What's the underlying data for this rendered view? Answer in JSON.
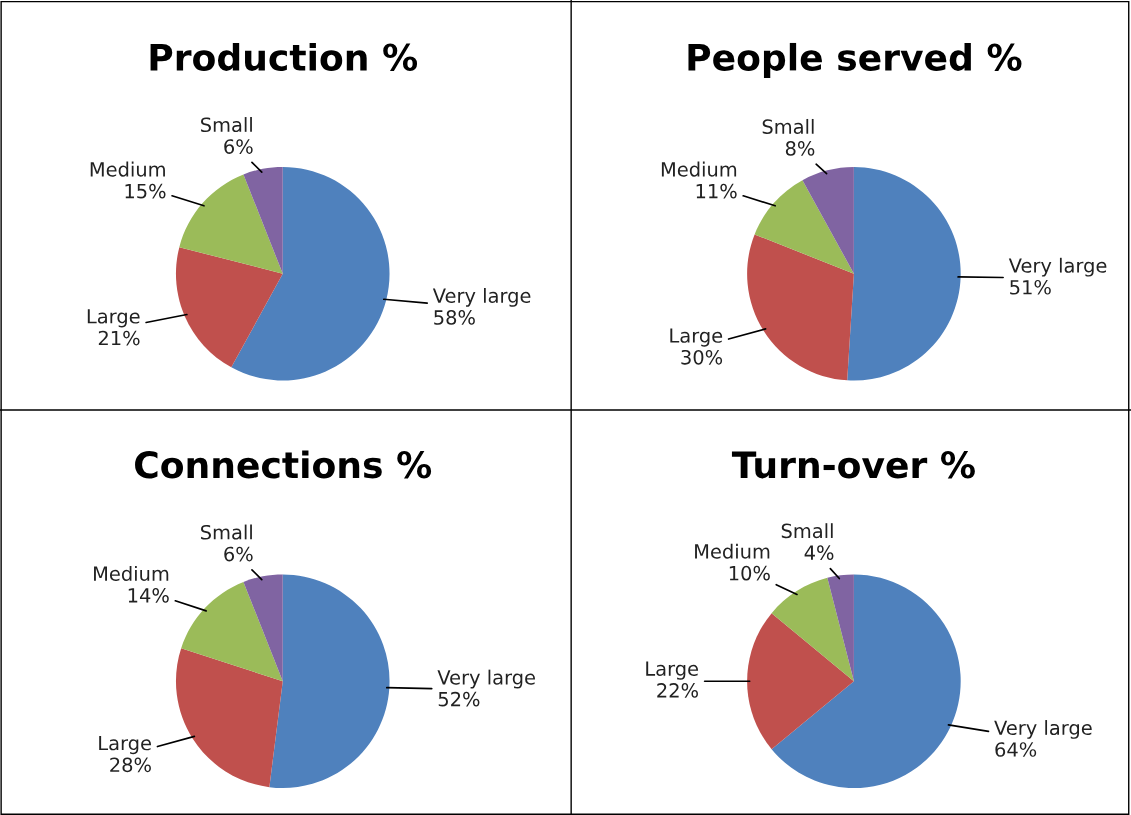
{
  "chart_data": [
    {
      "type": "pie",
      "title": "Production %",
      "categories": [
        "Very large",
        "Large",
        "Medium",
        "Small"
      ],
      "values": [
        58,
        21,
        15,
        6
      ],
      "value_labels": [
        "58%",
        "21%",
        "15%",
        "6%"
      ],
      "colors": [
        "#4f81bd",
        "#c0504d",
        "#9bbb59",
        "#8064a2"
      ]
    },
    {
      "type": "pie",
      "title": "People served %",
      "categories": [
        "Very large",
        "Large",
        "Medium",
        "Small"
      ],
      "values": [
        51,
        30,
        11,
        8
      ],
      "value_labels": [
        "51%",
        "30%",
        "11%",
        "8%"
      ],
      "colors": [
        "#4f81bd",
        "#c0504d",
        "#9bbb59",
        "#8064a2"
      ]
    },
    {
      "type": "pie",
      "title": "Connections %",
      "categories": [
        "Very large",
        "Large",
        "Medium",
        "Small"
      ],
      "values": [
        52,
        28,
        14,
        6
      ],
      "value_labels": [
        "52%",
        "28%",
        "14%",
        "6%"
      ],
      "colors": [
        "#4f81bd",
        "#c0504d",
        "#9bbb59",
        "#8064a2"
      ]
    },
    {
      "type": "pie",
      "title": "Turn-over %",
      "categories": [
        "Very large",
        "Large",
        "Medium",
        "Small"
      ],
      "values": [
        64,
        22,
        10,
        4
      ],
      "value_labels": [
        "64%",
        "22%",
        "10%",
        "4%"
      ],
      "colors": [
        "#4f81bd",
        "#c0504d",
        "#9bbb59",
        "#8064a2"
      ]
    }
  ]
}
